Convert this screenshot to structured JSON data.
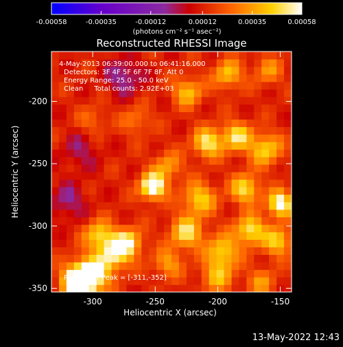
{
  "chart_data": {
    "type": "heatmap",
    "title": "Reconstructed RHESSI Image",
    "xlabel": "Heliocentric X (arcsec)",
    "ylabel": "Heliocentric Y (arcsec)",
    "xlim": [
      -333,
      -141
    ],
    "ylim": [
      -353,
      -160
    ],
    "xticks": [
      -300,
      -250,
      -200,
      -150
    ],
    "yticks": [
      -350,
      -300,
      -250,
      -200
    ],
    "colorbar": {
      "min": -0.00058,
      "max": 0.00058,
      "ticks": [
        -0.00058,
        -0.00035,
        -0.00012,
        0.00012,
        0.00035,
        0.00058
      ],
      "tick_labels": [
        "-0.00058",
        "-0.00035",
        "-0.00012",
        "0.00012",
        "0.00035",
        "0.00058"
      ],
      "units_label": "(photons cm⁻² s⁻¹ asec⁻²)",
      "colors": [
        "#0000ff",
        "#6600cc",
        "#8c2aa0",
        "#cc0000",
        "#ff6600",
        "#ffd000",
        "#ffffff"
      ]
    },
    "annotations": [
      "4-May-2013 06:39:00.000 to 06:41:16.000",
      "Detectors: 3F 4F 5F 6F 7F 8F, Att 0",
      "Energy Range: 25.0 - 50.0 keV",
      "Clean     Total counts: 2.92E+03"
    ],
    "peak_label": "Position of Peak = [-311,-352]",
    "grid_size": [
      32,
      32
    ],
    "blobs": [
      {
        "x": -311,
        "y": -345,
        "amp": 1.0,
        "sigma": 9
      },
      {
        "x": -300,
        "y": -338,
        "amp": 0.6,
        "sigma": 10
      },
      {
        "x": -252,
        "y": -268,
        "amp": 0.85,
        "sigma": 7
      },
      {
        "x": -283,
        "y": -322,
        "amp": 0.55,
        "sigma": 9
      },
      {
        "x": -295,
        "y": -307,
        "amp": 0.5,
        "sigma": 8
      },
      {
        "x": -272,
        "y": -313,
        "amp": 0.55,
        "sigma": 8
      },
      {
        "x": -208,
        "y": -233,
        "amp": 0.6,
        "sigma": 8
      },
      {
        "x": -185,
        "y": -228,
        "amp": 0.55,
        "sigma": 8
      },
      {
        "x": -162,
        "y": -238,
        "amp": 0.5,
        "sigma": 9
      },
      {
        "x": -150,
        "y": -282,
        "amp": 0.75,
        "sigma": 7
      },
      {
        "x": -174,
        "y": -303,
        "amp": 0.6,
        "sigma": 8
      },
      {
        "x": -152,
        "y": -312,
        "amp": 0.5,
        "sigma": 8
      },
      {
        "x": -178,
        "y": -270,
        "amp": 0.55,
        "sigma": 8
      },
      {
        "x": -215,
        "y": -278,
        "amp": 0.5,
        "sigma": 9
      },
      {
        "x": -225,
        "y": -305,
        "amp": 0.55,
        "sigma": 9
      },
      {
        "x": -196,
        "y": -320,
        "amp": 0.5,
        "sigma": 9
      },
      {
        "x": -200,
        "y": -340,
        "amp": 0.4,
        "sigma": 9
      },
      {
        "x": -224,
        "y": -192,
        "amp": 0.45,
        "sigma": 8
      },
      {
        "x": -192,
        "y": -178,
        "amp": 0.45,
        "sigma": 8
      },
      {
        "x": -160,
        "y": -175,
        "amp": 0.3,
        "sigma": 8
      },
      {
        "x": -240,
        "y": -252,
        "amp": 0.35,
        "sigma": 8
      },
      {
        "x": -265,
        "y": -215,
        "amp": 0.25,
        "sigma": 8
      },
      {
        "x": -300,
        "y": -215,
        "amp": 0.2,
        "sigma": 8
      },
      {
        "x": -240,
        "y": -330,
        "amp": 0.35,
        "sigma": 8
      },
      {
        "x": -165,
        "y": -345,
        "amp": 0.3,
        "sigma": 8
      },
      {
        "x": -320,
        "y": -280,
        "amp": -0.25,
        "sigma": 10
      },
      {
        "x": -275,
        "y": -180,
        "amp": -0.3,
        "sigma": 10
      },
      {
        "x": -310,
        "y": -240,
        "amp": -0.2,
        "sigma": 10
      }
    ]
  },
  "timestamp": "13-May-2022 12:43"
}
